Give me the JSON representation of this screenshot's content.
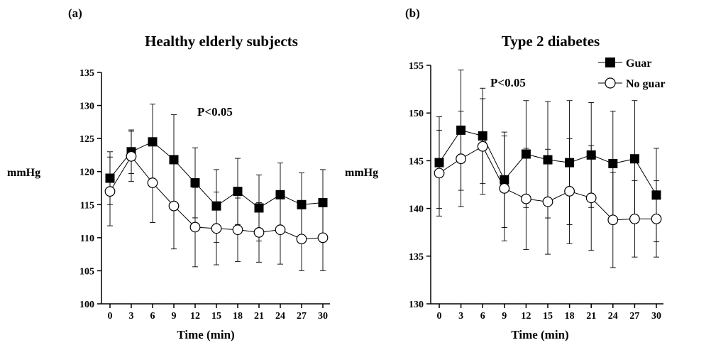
{
  "chart_data": [
    {
      "type": "line",
      "panel_label": "(a)",
      "title": "Healthy elderly subjects",
      "xlabel": "Time (min)",
      "ylabel": "mmHg",
      "annotation": "P<0.05",
      "x": [
        0,
        3,
        6,
        9,
        12,
        15,
        18,
        21,
        24,
        27,
        30
      ],
      "ylim": [
        100,
        135
      ],
      "yticks": [
        100,
        105,
        110,
        115,
        120,
        125,
        130,
        135
      ],
      "series": [
        {
          "marker": "filled-square",
          "color": "#000000",
          "values": [
            119,
            123,
            124.5,
            121.8,
            118.3,
            114.8,
            117,
            114.5,
            116.5,
            115,
            115.3
          ],
          "error": [
            4,
            3.3,
            5.7,
            6.8,
            5.3,
            5.5,
            5,
            5,
            4.8,
            4.8,
            5
          ]
        },
        {
          "marker": "open-circle",
          "color": "#000000",
          "values": [
            117,
            122.3,
            118.3,
            114.8,
            111.6,
            111.4,
            111.2,
            110.8,
            111.2,
            109.8,
            110
          ],
          "error": [
            5.2,
            3.8,
            6,
            6.5,
            6,
            5.5,
            4.8,
            4.5,
            5.2,
            4.8,
            5
          ]
        }
      ]
    },
    {
      "type": "line",
      "panel_label": "(b)",
      "title": "Type 2 diabetes",
      "xlabel": "Time (min)",
      "ylabel": "mmHg",
      "annotation": "P<0.05",
      "legend_position": "top-right",
      "x": [
        0,
        3,
        6,
        9,
        12,
        15,
        18,
        21,
        24,
        27,
        30
      ],
      "ylim": [
        130,
        155
      ],
      "yticks": [
        130,
        135,
        140,
        145,
        150,
        155
      ],
      "series": [
        {
          "name": "Guar",
          "marker": "filled-square",
          "color": "#000000",
          "values": [
            144.8,
            148.2,
            147.6,
            143,
            145.7,
            145.1,
            144.8,
            145.6,
            144.7,
            145.2,
            141.4
          ],
          "error": [
            4.8,
            6.3,
            5,
            5,
            5.6,
            6.1,
            6.5,
            5.5,
            5.5,
            6.1,
            4.9
          ]
        },
        {
          "name": "No guar",
          "marker": "open-circle",
          "color": "#000000",
          "values": [
            143.7,
            145.2,
            146.5,
            142.1,
            141,
            140.7,
            141.8,
            141.1,
            138.8,
            138.9,
            138.9
          ],
          "error": [
            4.5,
            5,
            5,
            5.5,
            5.3,
            5.5,
            5.5,
            5.5,
            5,
            4,
            4
          ]
        }
      ]
    }
  ]
}
